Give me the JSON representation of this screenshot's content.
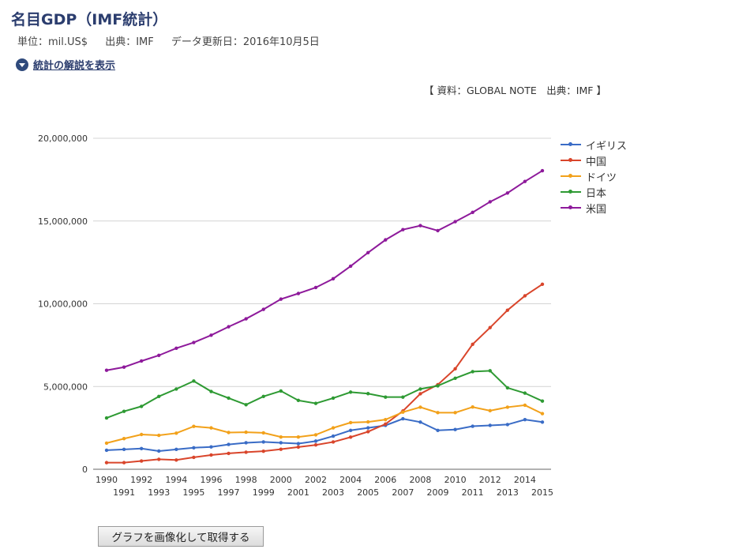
{
  "header": {
    "title": "名目GDP（IMF統計）",
    "unit": "単位：mil.US$",
    "source": "出典：IMF",
    "updated": "データ更新日：2016年10月5日"
  },
  "toggle": {
    "label": "統計の解説を表示",
    "icon": "chevron-down-circle-icon"
  },
  "chart_source": "【 資料：GLOBAL NOTE　出典：IMF 】",
  "button_label": "グラフを画像化して取得する",
  "chart_data": {
    "type": "line",
    "x": [
      1990,
      1991,
      1992,
      1993,
      1994,
      1995,
      1996,
      1997,
      1998,
      1999,
      2000,
      2001,
      2002,
      2003,
      2004,
      2005,
      2006,
      2007,
      2008,
      2009,
      2010,
      2011,
      2012,
      2013,
      2014,
      2015
    ],
    "yticks": [
      "0",
      "5,000,000",
      "10,000,000",
      "15,000,000",
      "20,000,000"
    ],
    "ylim": [
      0,
      20000000
    ],
    "grid": true,
    "legend": "right",
    "series": [
      {
        "name": "イギリス",
        "color": "#3a6cc6",
        "values": [
          1150000,
          1200000,
          1250000,
          1100000,
          1200000,
          1300000,
          1350000,
          1500000,
          1600000,
          1650000,
          1600000,
          1550000,
          1700000,
          2000000,
          2350000,
          2500000,
          2650000,
          3050000,
          2850000,
          2350000,
          2400000,
          2600000,
          2650000,
          2700000,
          3000000,
          2850000
        ]
      },
      {
        "name": "中国",
        "color": "#d9452b",
        "values": [
          400000,
          400000,
          500000,
          600000,
          560000,
          720000,
          860000,
          960000,
          1030000,
          1090000,
          1210000,
          1340000,
          1470000,
          1650000,
          1940000,
          2270000,
          2730000,
          3520000,
          4560000,
          5110000,
          6070000,
          7550000,
          8560000,
          9610000,
          10480000,
          11180000
        ]
      },
      {
        "name": "ドイツ",
        "color": "#f2a11a",
        "values": [
          1580000,
          1850000,
          2100000,
          2050000,
          2180000,
          2590000,
          2500000,
          2220000,
          2240000,
          2200000,
          1950000,
          1950000,
          2080000,
          2500000,
          2820000,
          2860000,
          3000000,
          3450000,
          3750000,
          3420000,
          3420000,
          3760000,
          3540000,
          3750000,
          3870000,
          3360000
        ]
      },
      {
        "name": "日本",
        "color": "#2e9a33",
        "values": [
          3100000,
          3500000,
          3800000,
          4400000,
          4850000,
          5330000,
          4700000,
          4300000,
          3900000,
          4400000,
          4730000,
          4160000,
          3980000,
          4300000,
          4660000,
          4570000,
          4360000,
          4360000,
          4850000,
          5040000,
          5500000,
          5900000,
          5950000,
          4920000,
          4600000,
          4120000
        ]
      },
      {
        "name": "米国",
        "color": "#8e1a9b",
        "values": [
          5980000,
          6170000,
          6540000,
          6880000,
          7310000,
          7660000,
          8100000,
          8610000,
          9090000,
          9660000,
          10280000,
          10620000,
          10980000,
          11510000,
          12270000,
          13090000,
          13860000,
          14480000,
          14720000,
          14420000,
          14960000,
          15520000,
          16160000,
          16690000,
          17390000,
          18040000
        ]
      }
    ]
  }
}
